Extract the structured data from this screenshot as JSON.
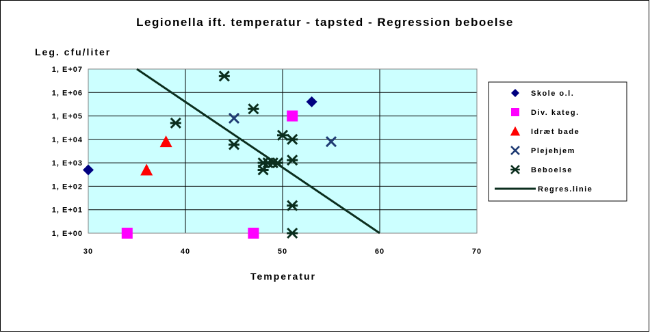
{
  "chart_data": {
    "type": "scatter",
    "title": "Legionella ift. temperatur - tapsted - Regression beboelse",
    "ylabel": "Leg. cfu/liter",
    "xlabel": "Temperatur",
    "x_range": [
      30,
      70
    ],
    "x_ticks": [
      "30",
      "40",
      "50",
      "60",
      "70"
    ],
    "y_scale": "log",
    "y_range": [
      1,
      10000000
    ],
    "y_ticks": [
      {
        "value": 1,
        "label": "1, E+00"
      },
      {
        "value": 10,
        "label": "1, E+01"
      },
      {
        "value": 100,
        "label": "1, E+02"
      },
      {
        "value": 1000,
        "label": "1, E+03"
      },
      {
        "value": 10000,
        "label": "1, E+04"
      },
      {
        "value": 100000,
        "label": "1, E+05"
      },
      {
        "value": 1000000,
        "label": "1, E+06"
      },
      {
        "value": 10000000,
        "label": "1, E+07"
      }
    ],
    "grid": true,
    "plot_background": "#ccffff",
    "legend_position": "right",
    "series": [
      {
        "name": "Skole o.l.",
        "marker": "diamond",
        "color": "#000080",
        "points": [
          [
            30,
            500
          ],
          [
            53,
            400000
          ]
        ]
      },
      {
        "name": "Div. kateg.",
        "marker": "square",
        "color": "#ff00ff",
        "points": [
          [
            34,
            1
          ],
          [
            47,
            1
          ],
          [
            51,
            100000
          ]
        ]
      },
      {
        "name": "Idræt bade",
        "marker": "triangle",
        "color": "#ff0000",
        "points": [
          [
            36,
            500
          ],
          [
            38,
            8000
          ]
        ]
      },
      {
        "name": "Plejehjem",
        "marker": "x",
        "color": "#1f3b73",
        "points": [
          [
            45,
            80000
          ],
          [
            55,
            8000
          ]
        ]
      },
      {
        "name": "Beboelse",
        "marker": "asterisk",
        "color": "#0b2e1e",
        "points": [
          [
            39,
            50000
          ],
          [
            44,
            5000000
          ],
          [
            45,
            6000
          ],
          [
            47,
            200000
          ],
          [
            48,
            1000
          ],
          [
            48,
            500
          ],
          [
            48.5,
            1000
          ],
          [
            49,
            1000
          ],
          [
            49.5,
            1000
          ],
          [
            50,
            15000
          ],
          [
            51,
            10000
          ],
          [
            51,
            1300
          ],
          [
            51,
            15
          ],
          [
            51,
            1
          ]
        ]
      },
      {
        "name": "Regres.linie",
        "marker": "line",
        "color": "#0b2e1e",
        "points": [
          [
            35,
            10000000
          ],
          [
            60,
            1
          ]
        ]
      }
    ]
  }
}
